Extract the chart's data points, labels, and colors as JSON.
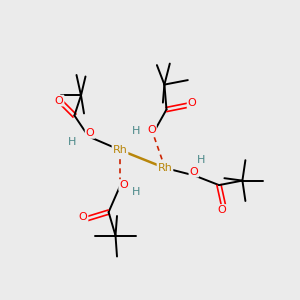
{
  "bg_color": "#ebebeb",
  "rh_color": "#b8860b",
  "o_color": "#ff0000",
  "h_color": "#4a8888",
  "bond_color": "#000000",
  "dash_color": "#cc2200",
  "figsize": [
    3.0,
    3.0
  ],
  "dpi": 100,
  "rh1": [
    0.4,
    0.5
  ],
  "rh2": [
    0.55,
    0.44
  ]
}
